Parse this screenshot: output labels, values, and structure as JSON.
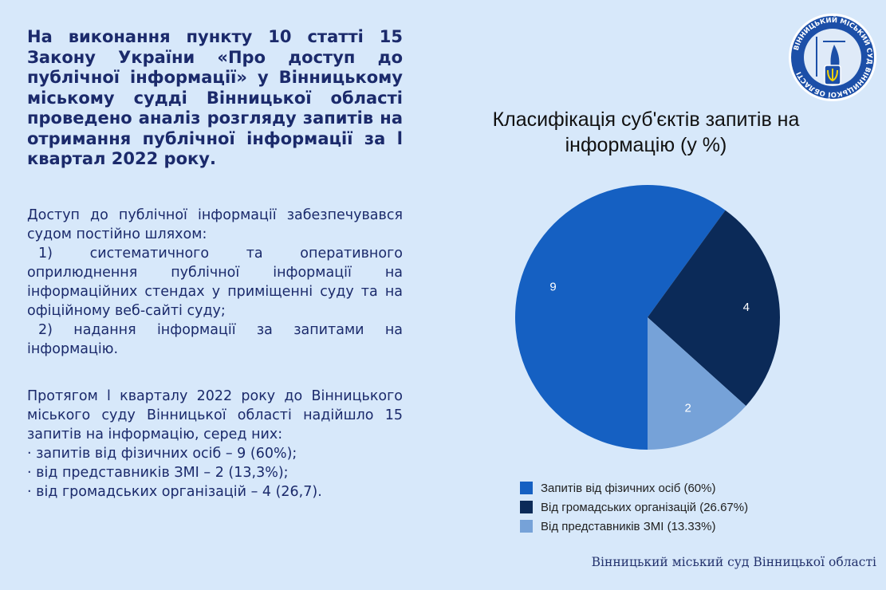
{
  "heading": "На виконання пункту 10 статті 15 Закону України «Про доступ до публічної інформації» у Вінницькому міському судді Вінницької області проведено аналіз розгляду запитів на отримання публічної інформації за l квартал 2022 року.",
  "access": {
    "intro": "Доступ до публічної інформації забезпечувався судом постійно шляхом:",
    "item1": "1) систематичного та оперативного оприлюднення публічної інформації на інформаційних стендах у приміщенні суду та на офіційному веб-сайті суду;",
    "item2": "2) надання інформації за запитами на інформацію."
  },
  "summary": {
    "intro": "Протягом l кварталу 2022 року до Вінницького міського суду Вінницької області надійшло 15 запитів на інформацію, серед них:",
    "lines": [
      "· запитів від фізичних осіб – 9 (60%);",
      "· від представників ЗМІ – 2 (13,3%);",
      "· від громадських організацій – 4 (26,7)."
    ]
  },
  "footer": "Вінницький міський суд Вінницької області",
  "seal_text": "ВІННИЦЬКИЙ МІСЬКИЙ СУД ВІННИЦЬКОЇ ОБЛАСТІ",
  "chart_data": {
    "type": "pie",
    "title": "Класифікація суб'єктів запитів на інформацію (у %)",
    "title_lines": [
      "Класифікація суб'єктів запитів на",
      "інформацію (у %)"
    ],
    "slices": [
      {
        "label": "Запитів від фізичних осіб (60%)",
        "value": 9,
        "color": "#1560c2"
      },
      {
        "label": "Від громадських організацій (26.67%)",
        "value": 4,
        "color": "#0b2a58"
      },
      {
        "label": "Від представників ЗМІ (13.33%)",
        "value": 2,
        "color": "#76a2d8"
      }
    ],
    "start_order_clockwise_from_bottom": [
      0,
      1,
      2
    ],
    "legend_position": "bottom"
  }
}
